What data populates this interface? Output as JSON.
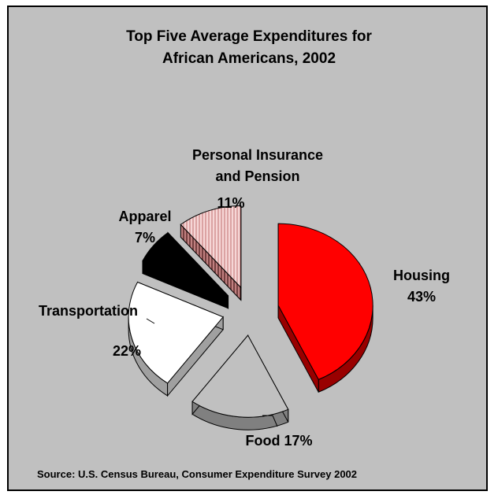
{
  "chart_data": {
    "type": "pie",
    "title_line1": "Top Five Average Expenditures  for",
    "title_line2": "African Americans, 2002",
    "slices": [
      {
        "label": "Housing",
        "value": 43,
        "value_label": "43%",
        "color": "#ff0000",
        "side_color": "#990000"
      },
      {
        "label": "Food",
        "value_label": "Food 17%",
        "value": 17,
        "color": "#c0c0c0",
        "side_color": "#808080"
      },
      {
        "label": "Transportation",
        "value": 22,
        "value_label": "22%",
        "color": "#ffffff",
        "side_color": "#a0a0a0"
      },
      {
        "label": "Apparel",
        "value": 7,
        "value_label": "7%",
        "color": "#000000",
        "side_color": "#000000"
      },
      {
        "label_line1": "Personal Insurance",
        "label_line2": "and Pension",
        "value": 11,
        "value_label": "11%",
        "color": "#f3cccc",
        "side_color": "#996666"
      }
    ],
    "source": "Source:  U.S. Census Bureau, Consumer Expenditure Survey 2002"
  }
}
